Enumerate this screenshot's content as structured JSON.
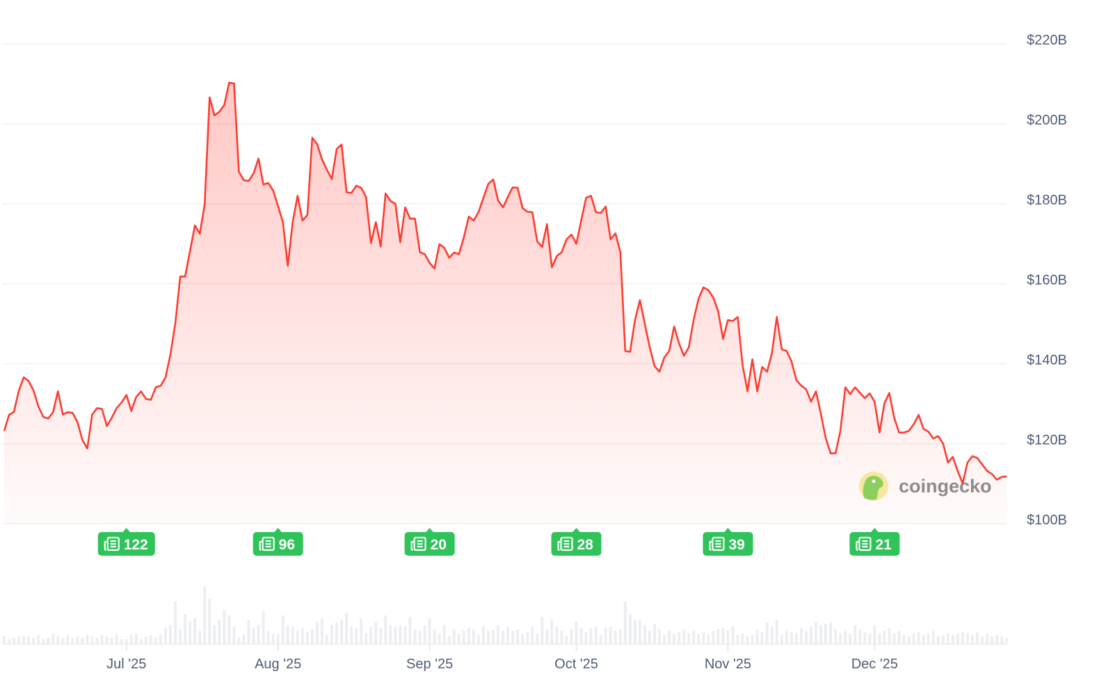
{
  "chart_data": {
    "type": "area",
    "title": "",
    "xlabel": "",
    "ylabel": "",
    "y_unit": "USD (billions)",
    "ylim": [
      100,
      220
    ],
    "yticks": [
      "$100B",
      "$120B",
      "$140B",
      "$160B",
      "$180B",
      "$200B",
      "$220B"
    ],
    "ytick_values": [
      100,
      120,
      140,
      160,
      180,
      200,
      220
    ],
    "y_axis_position": "right",
    "xticks": [
      {
        "label": "Jul '25",
        "date": "2025-07-01"
      },
      {
        "label": "Aug '25",
        "date": "2025-08-01"
      },
      {
        "label": "Sep '25",
        "date": "2025-09-01"
      },
      {
        "label": "Oct '25",
        "date": "2025-10-01"
      },
      {
        "label": "Nov '25",
        "date": "2025-11-01"
      },
      {
        "label": "Dec '25",
        "date": "2025-12-01"
      }
    ],
    "grid": "horizontal",
    "line_color": "#ff3b30",
    "fill": "red gradient fading to white",
    "series": [
      {
        "segments": [
          {
            "from": "2025-06-06",
            "to": "2025-06-30",
            "values": [
              123.2,
              127.2,
              128.0,
              133.3,
              136.6,
              135.7,
              133.3,
              129.3,
              126.7,
              126.3,
              127.9,
              133.1,
              127.3,
              127.9,
              127.7,
              125.3,
              120.9,
              118.8,
              127.3,
              128.9,
              128.7,
              124.4,
              126.5,
              128.9,
              130.3
            ]
          },
          {
            "from": "2025-07-01",
            "to": "2025-07-31",
            "values": [
              132.2,
              128.2,
              131.7,
              133.1,
              131.2,
              131.0,
              134.1,
              134.5,
              136.6,
              142.3,
              150.2,
              161.8,
              161.8,
              168.1,
              174.6,
              172.5,
              179.8,
              206.6,
              202.1,
              203.0,
              204.7,
              210.3,
              210.1,
              188.0,
              185.9,
              185.7,
              187.6,
              191.3,
              184.8,
              185.2,
              183.3
            ]
          },
          {
            "from": "2025-08-01",
            "to": "2025-08-31",
            "values": [
              179.4,
              175.4,
              164.5,
              175.4,
              182.0,
              175.8,
              177.2,
              196.5,
              194.9,
              191.1,
              188.5,
              186.2,
              193.7,
              194.8,
              182.9,
              182.7,
              184.5,
              184.0,
              181.7,
              170.2,
              175.4,
              169.3,
              182.6,
              180.7,
              180.0,
              170.4,
              179.1,
              176.3,
              176.3,
              167.9,
              167.4
            ]
          },
          {
            "from": "2025-09-01",
            "to": "2025-09-30",
            "values": [
              165.2,
              163.8,
              169.9,
              169.0,
              166.5,
              167.8,
              167.4,
              171.6,
              176.8,
              175.8,
              177.9,
              181.5,
              185.0,
              186.1,
              180.8,
              179.1,
              181.7,
              184.1,
              184.0,
              178.9,
              178.0,
              177.9,
              170.6,
              169.2,
              174.9,
              164.1,
              166.9,
              167.9,
              171.1,
              172.3
            ]
          },
          {
            "from": "2025-10-01",
            "to": "2025-10-31",
            "values": [
              170.0,
              175.8,
              181.5,
              182.0,
              177.9,
              177.7,
              179.3,
              171.1,
              172.6,
              167.9,
              143.2,
              143.0,
              151.0,
              155.9,
              150.0,
              144.1,
              139.4,
              138.0,
              141.6,
              143.2,
              149.3,
              145.1,
              142.0,
              144.1,
              151.0,
              156.3,
              159.1,
              158.4,
              156.6,
              153.1,
              146.2
            ]
          },
          {
            "from": "2025-11-01",
            "to": "2025-11-30",
            "values": [
              150.9,
              150.7,
              151.7,
              139.7,
              133.1,
              141.1,
              133.1,
              139.2,
              138.0,
              142.7,
              151.7,
              143.6,
              143.2,
              140.6,
              135.9,
              134.5,
              133.6,
              130.5,
              133.1,
              127.5,
              121.4,
              117.6,
              117.6,
              123.2,
              134.1,
              132.4,
              134.1,
              132.7,
              131.4,
              132.6
            ]
          },
          {
            "from": "2025-12-01",
            "to": "2025-12-28",
            "values": [
              130.5,
              122.8,
              130.1,
              132.7,
              126.5,
              122.8,
              122.8,
              123.2,
              124.9,
              127.2,
              123.7,
              123.0,
              121.3,
              121.9,
              120.0,
              115.3,
              116.7,
              113.1,
              110.1,
              115.3,
              116.9,
              116.4,
              114.8,
              113.2,
              112.4,
              111.0,
              111.7,
              111.8
            ]
          }
        ]
      }
    ],
    "volume_relative": [
      10,
      6,
      8,
      10,
      10,
      10,
      8,
      12,
      6,
      8,
      14,
      10,
      8,
      12,
      8,
      10,
      8,
      12,
      10,
      8,
      12,
      10,
      8,
      12,
      6,
      6,
      12,
      14,
      6,
      10,
      12,
      8,
      12,
      22,
      26,
      60,
      20,
      42,
      32,
      36,
      18,
      82,
      64,
      26,
      34,
      48,
      40,
      24,
      8,
      12,
      34,
      22,
      26,
      46,
      18,
      14,
      14,
      40,
      26,
      24,
      18,
      22,
      16,
      20,
      32,
      36,
      12,
      26,
      30,
      34,
      44,
      24,
      22,
      36,
      14,
      24,
      30,
      22,
      40,
      26,
      24,
      26,
      24,
      38,
      20,
      18,
      26,
      36,
      20,
      14,
      26,
      10,
      20,
      14,
      18,
      22,
      20,
      12,
      24,
      18,
      20,
      26,
      18,
      24,
      18,
      20,
      14,
      16,
      24,
      14,
      38,
      20,
      34,
      24,
      18,
      10,
      20,
      32,
      22,
      16,
      22,
      24,
      12,
      22,
      24,
      18,
      20,
      60,
      42,
      34,
      34,
      26,
      18,
      28,
      20,
      12,
      18,
      14,
      16,
      20,
      14,
      18,
      14,
      16,
      12,
      18,
      20,
      22,
      18,
      24,
      12,
      14,
      10,
      12,
      20,
      16,
      30,
      24,
      34,
      12,
      18,
      16,
      14,
      22,
      18,
      24,
      30,
      26,
      28,
      30,
      20,
      14,
      18,
      14,
      26,
      20,
      16,
      14,
      26,
      14,
      18,
      22,
      14,
      18,
      12,
      10,
      14,
      16,
      12,
      14,
      18,
      10,
      12,
      14,
      12,
      14,
      16,
      14,
      12,
      16,
      10,
      14,
      10,
      12,
      10,
      8
    ],
    "volume_color": "#eceef2",
    "news_markers": [
      {
        "date": "2025-07-01",
        "count": "122"
      },
      {
        "date": "2025-08-01",
        "count": "96"
      },
      {
        "date": "2025-09-01",
        "count": "20"
      },
      {
        "date": "2025-10-01",
        "count": "28"
      },
      {
        "date": "2025-11-01",
        "count": "39"
      },
      {
        "date": "2025-12-01",
        "count": "21"
      }
    ],
    "news_marker_color": "#2fc35a",
    "news_icon": "newspaper-icon"
  },
  "watermark": {
    "text": "coingecko",
    "icon": "gecko-logo-icon"
  }
}
